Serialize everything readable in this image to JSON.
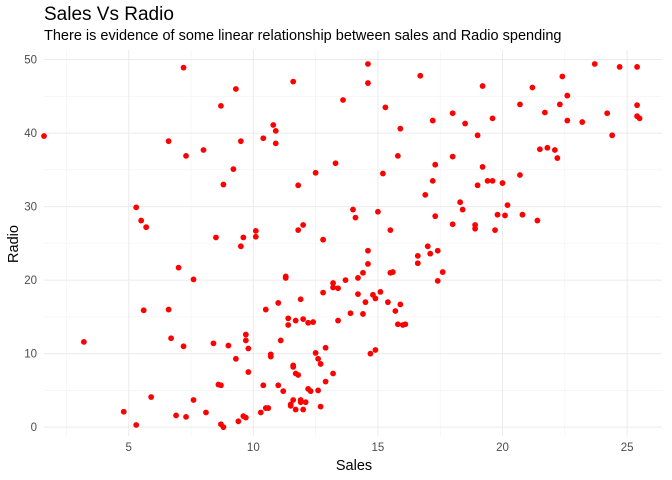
{
  "chart_data": {
    "type": "scatter",
    "title": "Sales Vs Radio",
    "subtitle": "There is evidence of some linear relationship between sales and Radio spending",
    "xlabel": "Sales",
    "ylabel": "Radio",
    "xlim": [
      1.6,
      26.4
    ],
    "ylim": [
      -1.2,
      51.3
    ],
    "xticks": [
      5,
      10,
      15,
      20,
      25
    ],
    "yticks": [
      0,
      10,
      20,
      30,
      40,
      50
    ],
    "grid": true,
    "point_color": "#ff0000",
    "points": [
      [
        1.6,
        39.6
      ],
      [
        3.2,
        11.6
      ],
      [
        4.8,
        2.1
      ],
      [
        5.3,
        0.3
      ],
      [
        5.3,
        29.9
      ],
      [
        5.5,
        28.1
      ],
      [
        5.6,
        15.9
      ],
      [
        5.7,
        27.2
      ],
      [
        5.9,
        4.1
      ],
      [
        6.6,
        38.9
      ],
      [
        6.6,
        16.0
      ],
      [
        6.7,
        12.1
      ],
      [
        6.9,
        1.6
      ],
      [
        7.0,
        21.7
      ],
      [
        7.2,
        48.9
      ],
      [
        7.2,
        11.0
      ],
      [
        7.3,
        36.9
      ],
      [
        7.3,
        1.4
      ],
      [
        7.6,
        20.1
      ],
      [
        7.6,
        3.7
      ],
      [
        8.0,
        37.7
      ],
      [
        8.1,
        2.0
      ],
      [
        8.4,
        11.4
      ],
      [
        8.5,
        25.8
      ],
      [
        8.6,
        5.8
      ],
      [
        8.7,
        43.7
      ],
      [
        8.7,
        5.7
      ],
      [
        8.7,
        0.4
      ],
      [
        8.8,
        0.0
      ],
      [
        8.8,
        33.0
      ],
      [
        9.0,
        11.1
      ],
      [
        9.2,
        35.1
      ],
      [
        9.3,
        9.3
      ],
      [
        9.3,
        46.0
      ],
      [
        9.4,
        0.8
      ],
      [
        9.5,
        24.6
      ],
      [
        9.5,
        38.9
      ],
      [
        9.6,
        25.8
      ],
      [
        9.6,
        1.5
      ],
      [
        9.7,
        1.3
      ],
      [
        9.7,
        12.6
      ],
      [
        9.7,
        11.8
      ],
      [
        9.8,
        10.7
      ],
      [
        9.8,
        7.5
      ],
      [
        10.1,
        25.9
      ],
      [
        10.1,
        26.7
      ],
      [
        10.3,
        2.0
      ],
      [
        10.4,
        5.7
      ],
      [
        10.4,
        39.3
      ],
      [
        10.5,
        2.6
      ],
      [
        10.5,
        16.0
      ],
      [
        10.6,
        2.6
      ],
      [
        10.7,
        9.9
      ],
      [
        10.7,
        9.6
      ],
      [
        10.8,
        41.1
      ],
      [
        10.9,
        38.6
      ],
      [
        10.9,
        40.3
      ],
      [
        11.0,
        5.7
      ],
      [
        11.0,
        16.9
      ],
      [
        11.1,
        11.8
      ],
      [
        11.2,
        4.9
      ],
      [
        11.3,
        20.3
      ],
      [
        11.3,
        20.5
      ],
      [
        11.4,
        14.8
      ],
      [
        11.4,
        13.9
      ],
      [
        11.5,
        3.1
      ],
      [
        11.5,
        2.9
      ],
      [
        11.6,
        8.4
      ],
      [
        11.6,
        3.7
      ],
      [
        11.6,
        47.0
      ],
      [
        11.6,
        8.2
      ],
      [
        11.7,
        7.3
      ],
      [
        11.7,
        14.5
      ],
      [
        11.7,
        2.4
      ],
      [
        11.8,
        32.9
      ],
      [
        11.8,
        7.1
      ],
      [
        11.8,
        26.8
      ],
      [
        11.9,
        17.4
      ],
      [
        11.9,
        3.4
      ],
      [
        11.9,
        3.7
      ],
      [
        12.0,
        14.7
      ],
      [
        12.0,
        27.5
      ],
      [
        12.0,
        2.4
      ],
      [
        12.1,
        3.4
      ],
      [
        12.2,
        5.2
      ],
      [
        12.2,
        14.2
      ],
      [
        12.3,
        4.9
      ],
      [
        12.4,
        14.3
      ],
      [
        12.5,
        34.6
      ],
      [
        12.5,
        10.1
      ],
      [
        12.6,
        5.0
      ],
      [
        12.6,
        9.3
      ],
      [
        12.7,
        2.8
      ],
      [
        12.7,
        8.6
      ],
      [
        12.8,
        25.5
      ],
      [
        12.8,
        18.3
      ],
      [
        12.9,
        10.8
      ],
      [
        12.9,
        6.2
      ],
      [
        13.2,
        19.0
      ],
      [
        13.2,
        7.3
      ],
      [
        13.2,
        19.6
      ],
      [
        13.3,
        35.9
      ],
      [
        13.4,
        14.5
      ],
      [
        13.4,
        18.9
      ],
      [
        13.6,
        44.5
      ],
      [
        13.7,
        20.0
      ],
      [
        13.9,
        15.5
      ],
      [
        14.0,
        29.6
      ],
      [
        14.1,
        28.5
      ],
      [
        14.2,
        18.1
      ],
      [
        14.2,
        20.3
      ],
      [
        14.4,
        15.4
      ],
      [
        14.4,
        21.0
      ],
      [
        14.5,
        17.0
      ],
      [
        14.6,
        24.0
      ],
      [
        14.6,
        46.8
      ],
      [
        14.6,
        49.4
      ],
      [
        14.6,
        22.2
      ],
      [
        14.7,
        10.0
      ],
      [
        14.8,
        18.0
      ],
      [
        14.9,
        17.5
      ],
      [
        14.9,
        10.5
      ],
      [
        15.0,
        29.3
      ],
      [
        15.1,
        18.4
      ],
      [
        15.2,
        34.5
      ],
      [
        15.3,
        43.5
      ],
      [
        15.4,
        17.0
      ],
      [
        15.5,
        21.0
      ],
      [
        15.5,
        26.8
      ],
      [
        15.6,
        21.1
      ],
      [
        15.7,
        15.8
      ],
      [
        15.8,
        14.0
      ],
      [
        15.8,
        36.9
      ],
      [
        15.9,
        16.7
      ],
      [
        15.9,
        40.6
      ],
      [
        16.0,
        13.9
      ],
      [
        16.1,
        14.0
      ],
      [
        16.6,
        23.3
      ],
      [
        16.6,
        22.3
      ],
      [
        16.7,
        47.8
      ],
      [
        16.9,
        31.6
      ],
      [
        17.0,
        24.6
      ],
      [
        17.1,
        23.6
      ],
      [
        17.2,
        33.5
      ],
      [
        17.2,
        41.7
      ],
      [
        17.3,
        28.7
      ],
      [
        17.3,
        35.7
      ],
      [
        17.4,
        24.0
      ],
      [
        17.4,
        19.9
      ],
      [
        17.6,
        21.1
      ],
      [
        18.0,
        36.8
      ],
      [
        18.0,
        42.7
      ],
      [
        18.0,
        27.6
      ],
      [
        18.3,
        30.6
      ],
      [
        18.4,
        29.6
      ],
      [
        18.5,
        41.3
      ],
      [
        18.9,
        27.5
      ],
      [
        18.9,
        27.0
      ],
      [
        19.0,
        32.9
      ],
      [
        19.0,
        39.7
      ],
      [
        19.2,
        46.4
      ],
      [
        19.2,
        35.4
      ],
      [
        19.4,
        33.5
      ],
      [
        19.6,
        33.5
      ],
      [
        19.6,
        42.0
      ],
      [
        19.7,
        26.8
      ],
      [
        19.8,
        28.9
      ],
      [
        20.0,
        33.2
      ],
      [
        20.1,
        28.8
      ],
      [
        20.2,
        30.2
      ],
      [
        20.7,
        34.3
      ],
      [
        20.7,
        43.9
      ],
      [
        20.8,
        28.9
      ],
      [
        21.2,
        46.2
      ],
      [
        21.4,
        28.1
      ],
      [
        21.5,
        37.8
      ],
      [
        21.7,
        42.8
      ],
      [
        21.8,
        38.0
      ],
      [
        22.1,
        37.7
      ],
      [
        22.2,
        36.6
      ],
      [
        22.3,
        43.9
      ],
      [
        22.4,
        47.7
      ],
      [
        22.6,
        45.1
      ],
      [
        22.6,
        41.7
      ],
      [
        23.2,
        41.5
      ],
      [
        23.7,
        49.4
      ],
      [
        24.2,
        42.7
      ],
      [
        24.4,
        39.7
      ],
      [
        24.7,
        49.0
      ],
      [
        25.4,
        49.0
      ],
      [
        25.4,
        43.8
      ],
      [
        25.4,
        42.3
      ],
      [
        25.5,
        42.0
      ]
    ]
  }
}
